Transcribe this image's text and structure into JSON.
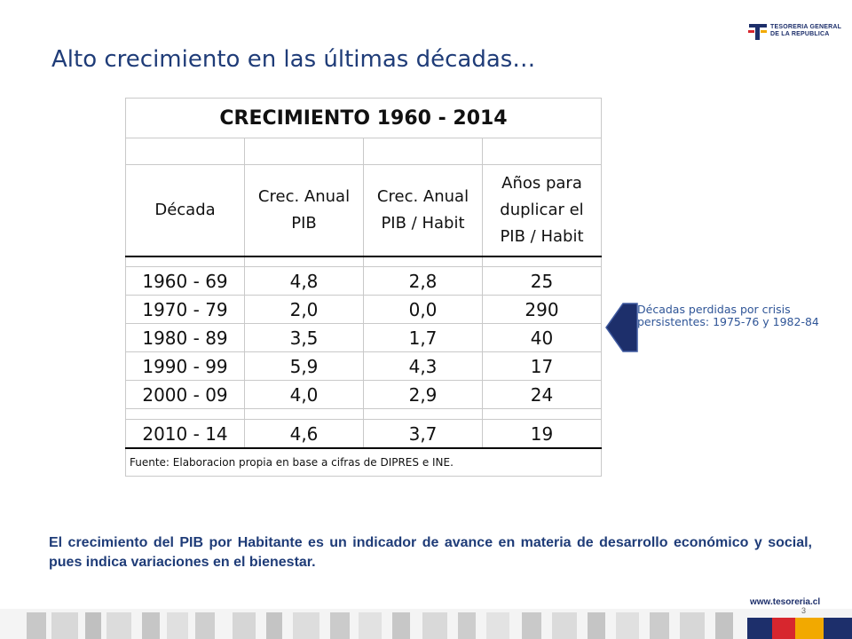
{
  "logo": {
    "line1": "TESORERIA GENERAL",
    "line2": "DE LA REPUBLICA"
  },
  "title": "Alto crecimiento en las últimas décadas…",
  "table": {
    "title": "CRECIMIENTO 1960 - 2014",
    "headers": {
      "decada": "Década",
      "crec_pib": [
        "Crec. Anual",
        "PIB"
      ],
      "crec_hab": [
        "Crec. Anual",
        "PIB / Habit"
      ],
      "anios": [
        "Años para",
        "duplicar el",
        "PIB / Habit"
      ]
    },
    "rows": [
      {
        "decada": "1960 - 69",
        "crec_pib": "4,8",
        "crec_hab": "2,8",
        "anios": "25"
      },
      {
        "decada": "1970 - 79",
        "crec_pib": "2,0",
        "crec_hab": "0,0",
        "anios": "290"
      },
      {
        "decada": "1980 - 89",
        "crec_pib": "3,5",
        "crec_hab": "1,7",
        "anios": "40"
      },
      {
        "decada": "1990 - 99",
        "crec_pib": "5,9",
        "crec_hab": "4,3",
        "anios": "17"
      },
      {
        "decada": "2000 - 09",
        "crec_pib": "4,0",
        "crec_hab": "2,9",
        "anios": "24"
      },
      {
        "decada": "2010 - 14",
        "crec_pib": "4,6",
        "crec_hab": "3,7",
        "anios": "19"
      }
    ],
    "source": "Fuente: Elaboracion propia en base a cifras de DIPRES e INE."
  },
  "callout": "Décadas perdidas por crisis persistentes: 1975-76 y 1982-84",
  "note": "El crecimiento del PIB por Habitante es un indicador de avance en materia de desarrollo económico y social, pues indica variaciones en el bienestar.",
  "footer": {
    "url": "www.tesoreria.cl",
    "slide_number": "3"
  },
  "colors": {
    "title": "#1f3c78",
    "arrow": "#1d2f6b",
    "callout_text": "#2f5597",
    "logo_red": "#d7262e"
  }
}
